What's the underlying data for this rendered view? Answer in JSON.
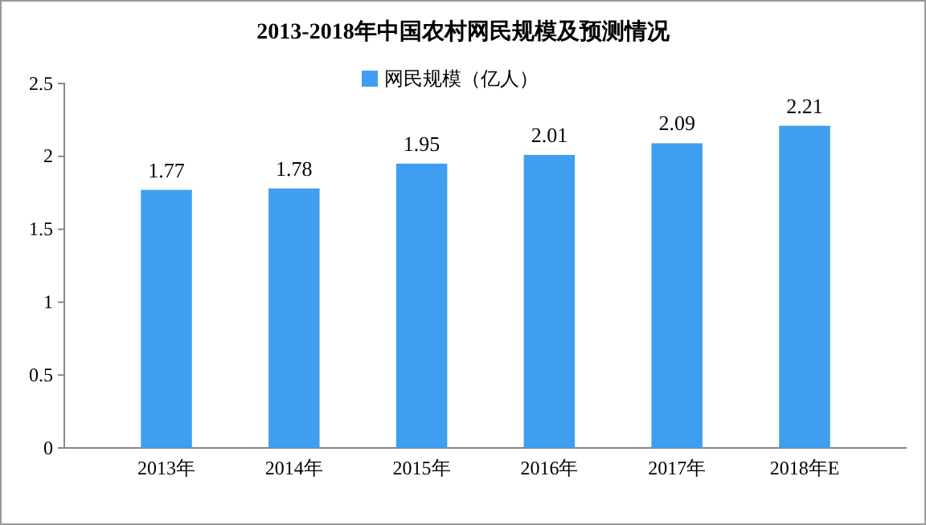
{
  "chart_data": {
    "type": "bar",
    "title": "2013-2018年中国农村网民规模及预测情况",
    "categories": [
      "2013年",
      "2014年",
      "2015年",
      "2016年",
      "2017年",
      "2018年E"
    ],
    "series": [
      {
        "name": "网民规模（亿人）",
        "color": "#3f9ef0",
        "values": [
          1.77,
          1.78,
          1.95,
          2.01,
          2.09,
          2.21
        ]
      }
    ],
    "ylim": [
      0,
      2.5
    ],
    "yticks": [
      0,
      0.5,
      1,
      1.5,
      2,
      2.5
    ],
    "grid": false,
    "legend": "top",
    "data_labels": true
  }
}
